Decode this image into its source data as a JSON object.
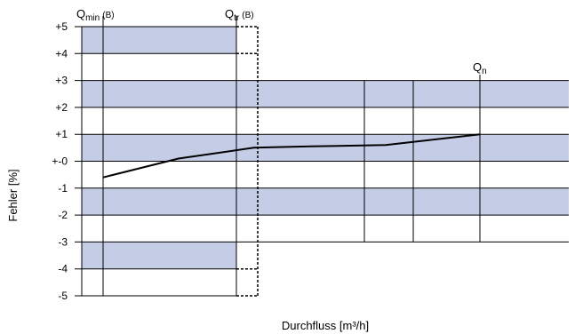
{
  "chart_data": {
    "type": "line",
    "title": "",
    "ylabel": "Fehler [%]",
    "xlabel": "Durchfluss [m³/h]",
    "ylim": [
      -5,
      5
    ],
    "y_ticks": [
      "+5",
      "+4",
      "+3",
      "+2",
      "+1",
      "+-0",
      "-1",
      "-2",
      "-3",
      "-4",
      "-5"
    ],
    "markers": {
      "qmin": {
        "main": "Q",
        "sub": "min",
        "suffix": "(B)"
      },
      "qtr": {
        "main": "Q",
        "sub": "tr",
        "suffix": "(B)"
      },
      "qn": {
        "main": "Q",
        "sub": "n",
        "suffix": ""
      }
    },
    "error_limits": {
      "low_flow_zone": {
        "upper": 5,
        "lower": -5
      },
      "high_flow_zone": {
        "upper": 3,
        "lower": -3
      }
    },
    "series": [
      {
        "values_relative_x": [
          0,
          0.2,
          0.4,
          0.55,
          0.75,
          1.0
        ],
        "y": [
          -0.6,
          0.1,
          0.5,
          0.55,
          0.6,
          1.0
        ]
      }
    ],
    "colors": {
      "band": "#c5cde6",
      "line": "#000000",
      "grid": "#000000"
    }
  }
}
